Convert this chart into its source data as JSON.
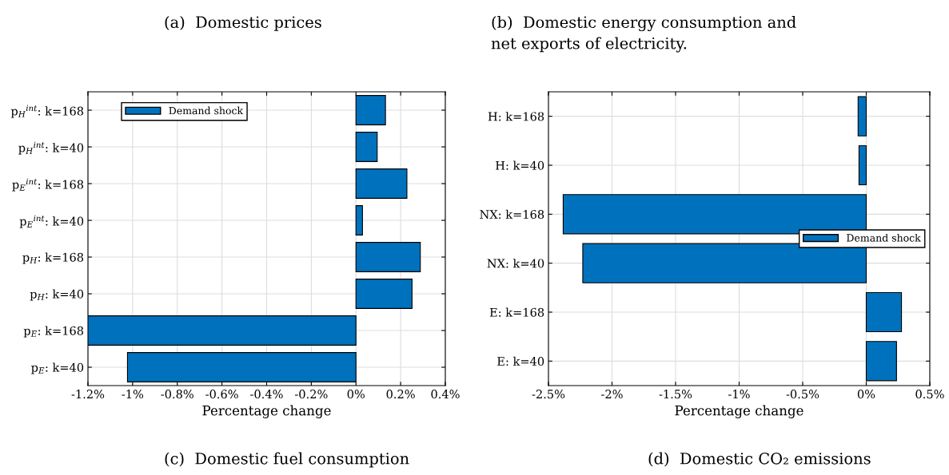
{
  "chart_data": [
    {
      "type": "bar",
      "orientation": "horizontal",
      "xlabel": "Percentage change",
      "annotations": [
        "(a)  Domestic prices",
        "(c)  Domestic fuel consumption"
      ],
      "categories": [
        "p$_{H}$$^{int}$: k=168",
        "p$_{H}$$^{int}$: k=40",
        "p$_{E}$$^{int}$: k=168",
        "p$_{E}$$^{int}$: k=40",
        "p$_{H}$: k=168",
        "p$_{H}$: k=40",
        "p$_{E}$: k=168",
        "p$_{E}$: k=40"
      ],
      "series": [
        {
          "name": "Demand shock",
          "color": "#0072bd",
          "values": [
            0.132,
            0.095,
            0.228,
            0.029,
            0.288,
            0.251,
            -1.2,
            -1.023
          ]
        }
      ],
      "xlim": [
        -1.2,
        0.4
      ],
      "xticks": [
        {
          "value": -1.2,
          "label": "-1.2%"
        },
        {
          "value": -1.0,
          "label": "-1%"
        },
        {
          "value": -0.8,
          "label": "-0.8%"
        },
        {
          "value": -0.6,
          "label": "-0.6%"
        },
        {
          "value": -0.4,
          "label": "-0.4%"
        },
        {
          "value": -0.2,
          "label": "-0.2%"
        },
        {
          "value": 0,
          "label": "0%"
        },
        {
          "value": 0.2,
          "label": "0.2%"
        },
        {
          "value": 0.4,
          "label": "0.4%"
        }
      ],
      "grid": true,
      "legend": "top left"
    },
    {
      "type": "bar",
      "orientation": "horizontal",
      "xlabel": "Percentage change",
      "annotations": [
        "(b)  Domestic energy consumption and\nnet exports of electricity.",
        "(d)  Domestic CO₂ emissions"
      ],
      "categories": [
        "H: k=168",
        "H: k=40",
        "NX: k=168",
        "NX: k=40",
        "E: k=168",
        "E: k=40"
      ],
      "series": [
        {
          "name": "Demand shock",
          "color": "#0072bd",
          "values": [
            -0.064,
            -0.057,
            -2.384,
            -2.23,
            0.277,
            0.238
          ]
        }
      ],
      "xlim": [
        -2.5,
        0.5
      ],
      "xticks": [
        {
          "value": -2.5,
          "label": "-2.5%"
        },
        {
          "value": -2.0,
          "label": "-2%"
        },
        {
          "value": -1.5,
          "label": "-1.5%"
        },
        {
          "value": -1.0,
          "label": "-1%"
        },
        {
          "value": -0.5,
          "label": "-0.5%"
        },
        {
          "value": 0,
          "label": "0%"
        },
        {
          "value": 0.5,
          "label": "0.5%"
        }
      ],
      "grid": true,
      "legend": "right"
    }
  ]
}
